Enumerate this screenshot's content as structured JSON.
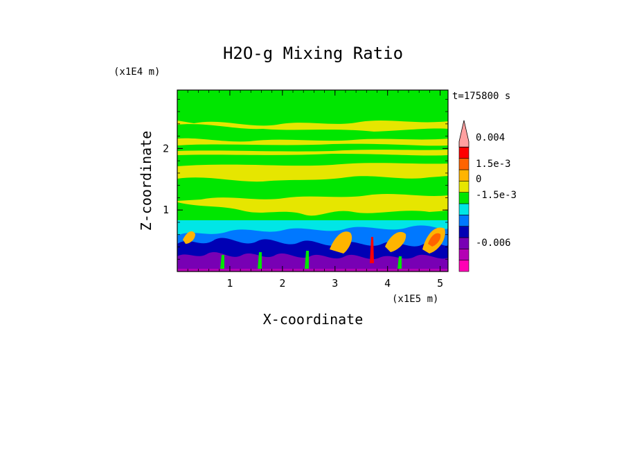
{
  "chart_data": {
    "type": "heatmap",
    "title": "H2O-g Mixing Ratio",
    "xlabel": "X-coordinate",
    "ylabel": "Z-coordinate",
    "x_unit": "(x1E5 m)",
    "y_unit": "(x1E4 m)",
    "time_label": "t=175800 s",
    "xlim": [
      0,
      5.15
    ],
    "ylim": [
      0,
      2.95
    ],
    "x_ticks": [
      "1",
      "2",
      "3",
      "4",
      "5"
    ],
    "y_ticks": [
      "1",
      "2"
    ],
    "colorbar": {
      "levels": [
        {
          "color": "#ff00b4"
        },
        {
          "color": "#b400b4"
        },
        {
          "color": "#7800b4"
        },
        {
          "color": "#0000b4"
        },
        {
          "color": "#0078ff"
        },
        {
          "color": "#00e6e6"
        },
        {
          "color": "#00e600"
        },
        {
          "color": "#e6e600"
        },
        {
          "color": "#ffb400"
        },
        {
          "color": "#ff6400"
        },
        {
          "color": "#ff0000"
        },
        {
          "color": "#ffa0a0"
        }
      ],
      "tick_labels": [
        "0.004",
        "1.5e-3",
        "0",
        "-1.5e-3",
        "-0.006"
      ]
    },
    "field_regions": [
      {
        "name": "upper-green-bands",
        "z_range": [
          1.95,
          2.95
        ],
        "dominant": "green-yellow"
      },
      {
        "name": "middle-yellow",
        "z_range": [
          0.95,
          1.95
        ],
        "dominant": "yellow"
      },
      {
        "name": "lower-turbulent",
        "z_range": [
          0,
          0.95
        ],
        "dominant": "cyan-blue-purple-orange"
      }
    ]
  }
}
